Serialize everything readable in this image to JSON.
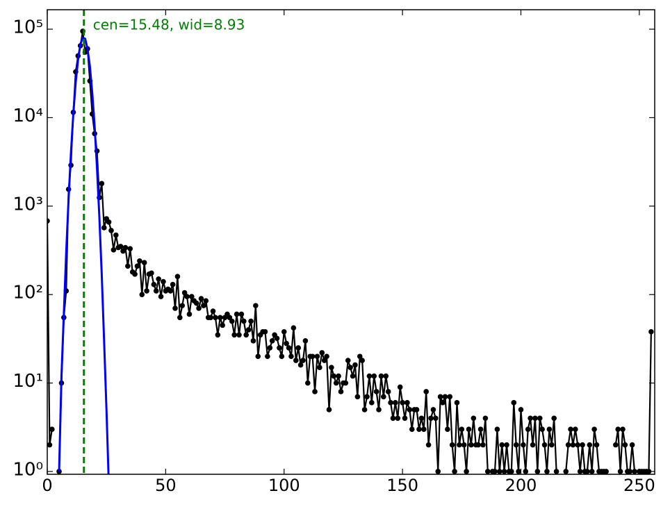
{
  "chart_data": {
    "type": "line",
    "log_y": true,
    "annotation": {
      "text": "cen=15.48, wid=8.93",
      "color": "#008000"
    },
    "vline": 15.48,
    "xlim": [
      0,
      256.5
    ],
    "ylim": [
      0.93,
      166000
    ],
    "xticks": [
      0,
      50,
      100,
      150,
      200,
      250
    ],
    "yticks": [
      {
        "value": 1,
        "label": "10⁰"
      },
      {
        "value": 10,
        "label": "10¹"
      },
      {
        "value": 100,
        "label": "10²"
      },
      {
        "value": 1000,
        "label": "10³"
      },
      {
        "value": 10000,
        "label": "10⁴"
      },
      {
        "value": 100000,
        "label": "10⁵"
      }
    ],
    "series": [
      {
        "color": "#000000",
        "markers": true,
        "x": [
          0,
          1,
          2,
          3,
          4,
          5,
          6,
          7,
          8,
          9,
          10,
          11,
          12,
          13,
          14,
          15,
          16,
          17,
          18,
          19,
          20,
          21,
          22,
          23,
          24,
          25,
          26,
          27,
          28,
          29,
          30,
          31,
          32,
          33,
          34,
          35,
          36,
          37,
          38,
          39,
          40,
          41,
          42,
          43,
          44,
          45,
          46,
          47,
          48,
          49,
          50,
          51,
          52,
          53,
          54,
          55,
          56,
          57,
          58,
          59,
          60,
          61,
          62,
          63,
          64,
          65,
          66,
          67,
          68,
          69,
          70,
          71,
          72,
          73,
          74,
          75,
          76,
          77,
          78,
          79,
          80,
          81,
          82,
          83,
          84,
          85,
          86,
          87,
          88,
          89,
          90,
          91,
          92,
          93,
          94,
          95,
          96,
          97,
          98,
          99,
          100,
          101,
          102,
          103,
          104,
          105,
          106,
          107,
          108,
          109,
          110,
          111,
          112,
          113,
          114,
          115,
          116,
          117,
          118,
          119,
          120,
          121,
          122,
          123,
          124,
          125,
          126,
          127,
          128,
          129,
          130,
          131,
          132,
          133,
          134,
          135,
          136,
          137,
          138,
          139,
          140,
          141,
          142,
          143,
          144,
          145,
          146,
          147,
          148,
          149,
          150,
          151,
          152,
          153,
          154,
          155,
          156,
          157,
          158,
          159,
          160,
          161,
          162,
          163,
          164,
          165,
          166,
          167,
          168,
          169,
          170,
          171,
          172,
          173,
          174,
          175,
          176,
          177,
          178,
          179,
          180,
          181,
          182,
          183,
          184,
          185,
          186,
          187,
          188,
          189,
          190,
          191,
          192,
          193,
          194,
          195,
          196,
          197,
          198,
          199,
          200,
          201,
          202,
          203,
          204,
          205,
          206,
          207,
          208,
          209,
          210,
          211,
          212,
          213,
          214,
          215,
          216,
          217,
          218,
          219,
          220,
          221,
          222,
          223,
          224,
          225,
          226,
          227,
          228,
          229,
          230,
          231,
          232,
          233,
          234,
          235,
          236,
          237,
          238,
          239,
          240,
          241,
          242,
          243,
          244,
          245,
          246,
          247,
          248,
          249,
          250,
          251,
          252,
          253,
          254,
          255
        ],
        "values": [
          680,
          2,
          3,
          null,
          null,
          1,
          10,
          55,
          110,
          1550,
          2900,
          11500,
          33000,
          50000,
          65000,
          95000,
          55000,
          60000,
          26000,
          11000,
          6600,
          4200,
          1250,
          1800,
          570,
          720,
          660,
          530,
          320,
          470,
          340,
          350,
          310,
          340,
          210,
          330,
          180,
          170,
          210,
          240,
          100,
          230,
          110,
          170,
          175,
          130,
          110,
          150,
          95,
          140,
          110,
          115,
          110,
          130,
          70,
          160,
          55,
          75,
          105,
          95,
          60,
          95,
          85,
          80,
          70,
          90,
          75,
          85,
          55,
          55,
          65,
          55,
          35,
          55,
          45,
          55,
          60,
          55,
          50,
          35,
          60,
          35,
          60,
          50,
          35,
          40,
          50,
          30,
          75,
          20,
          35,
          38,
          38,
          20,
          25,
          30,
          35,
          32,
          25,
          20,
          38,
          28,
          25,
          20,
          42,
          18,
          25,
          16,
          18,
          30,
          10,
          20,
          20,
          8,
          20,
          15,
          22,
          18,
          20,
          5,
          15,
          12,
          10,
          12,
          8,
          10,
          10,
          18,
          15,
          12,
          16,
          7,
          20,
          18,
          5,
          7,
          12,
          6,
          12,
          8,
          5,
          12,
          7,
          12,
          8,
          6,
          4,
          6,
          4,
          9,
          6,
          4,
          6,
          5,
          3,
          5,
          5,
          3,
          4,
          3,
          8,
          2,
          4,
          5,
          4,
          1,
          7,
          6,
          7,
          3,
          7,
          2,
          1,
          6,
          2,
          3,
          2,
          1,
          3,
          2,
          4,
          2,
          2,
          3,
          2,
          4,
          1,
          null,
          1,
          1,
          3,
          1,
          2,
          1,
          2,
          1,
          1,
          6,
          2,
          1,
          5,
          2,
          1,
          3,
          4,
          2,
          4,
          1,
          4,
          3,
          2,
          1,
          3,
          2,
          4,
          1,
          null,
          null,
          null,
          1,
          2,
          3,
          2,
          3,
          2,
          1,
          2,
          1,
          1,
          2,
          1,
          3,
          2,
          1,
          1,
          1,
          1,
          null,
          null,
          null,
          2,
          3,
          1,
          3,
          2,
          1,
          1,
          2,
          1,
          null,
          1,
          1,
          1,
          1,
          1,
          38
        ]
      },
      {
        "color": "#0000ff",
        "markers": false,
        "x": [
          5,
          6,
          7,
          8,
          9,
          10,
          11,
          12,
          13,
          14,
          15,
          16,
          17,
          18,
          19,
          20,
          21,
          22,
          23,
          24,
          25,
          26
        ],
        "values": [
          1,
          12,
          60,
          300,
          1200,
          4000,
          11000,
          25000,
          45000,
          68000,
          80000,
          78000,
          60000,
          38000,
          19000,
          8000,
          2700,
          750,
          170,
          30,
          5,
          0.7
        ]
      }
    ]
  }
}
